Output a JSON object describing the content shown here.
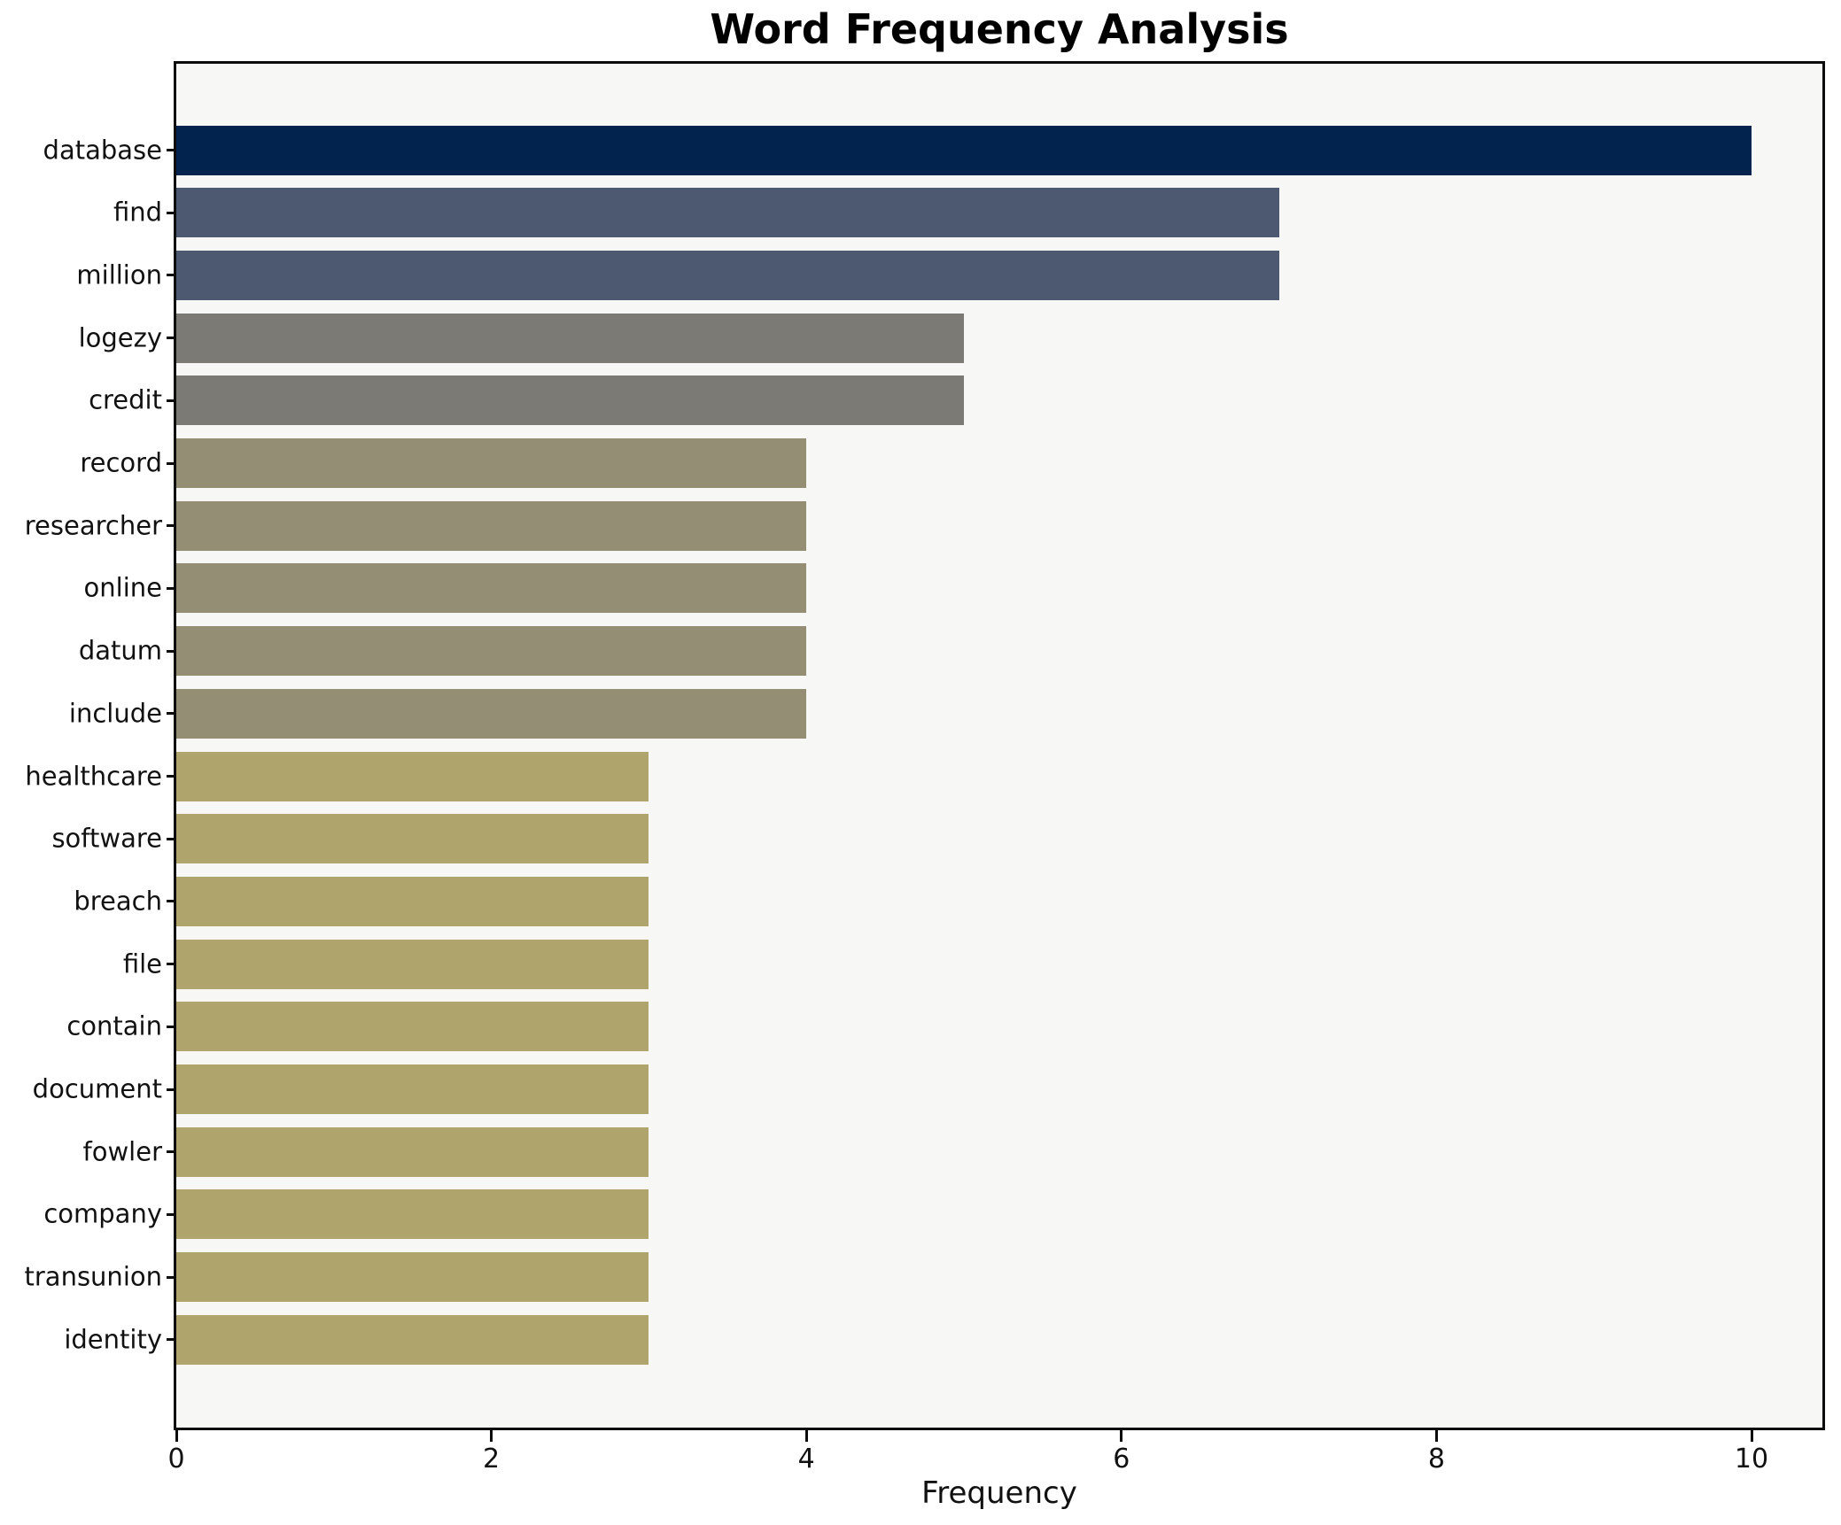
{
  "chart_data": {
    "type": "bar",
    "orientation": "horizontal",
    "title": "Word Frequency Analysis",
    "xlabel": "Frequency",
    "ylabel": "",
    "categories": [
      "database",
      "find",
      "million",
      "logezy",
      "credit",
      "record",
      "researcher",
      "online",
      "datum",
      "include",
      "healthcare",
      "software",
      "breach",
      "file",
      "contain",
      "document",
      "fowler",
      "company",
      "transunion",
      "identity"
    ],
    "values": [
      10,
      7,
      7,
      5,
      5,
      4,
      4,
      4,
      4,
      4,
      3,
      3,
      3,
      3,
      3,
      3,
      3,
      3,
      3,
      3
    ],
    "bar_colors": [
      "#02234e",
      "#4d5970",
      "#4d5970",
      "#7b7a74",
      "#7b7a74",
      "#948e74",
      "#948e74",
      "#948e74",
      "#948e74",
      "#948e74",
      "#afa46c",
      "#afa46c",
      "#afa46c",
      "#afa46c",
      "#afa46c",
      "#afa46c",
      "#afa46c",
      "#afa46c",
      "#afa46c",
      "#afa46c"
    ],
    "xticks": [
      0,
      2,
      4,
      6,
      8,
      10
    ],
    "xlim": [
      0,
      10.45
    ],
    "grid": false,
    "legend": "none",
    "plot_background": "#f7f7f6",
    "figure_background": "#ffffff",
    "spine_color": "#0c0c0c",
    "text_color": "#111111"
  }
}
